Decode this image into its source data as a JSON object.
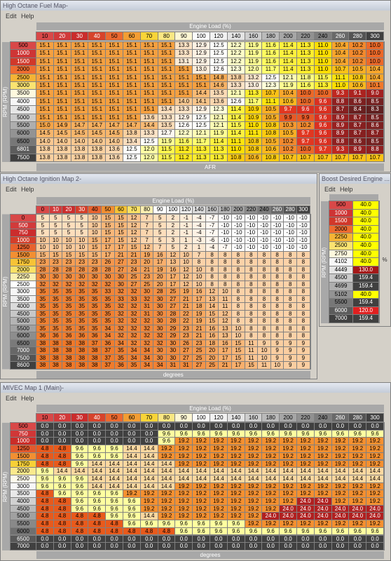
{
  "fuel_map": {
    "title": "High Octane Fuel Map-",
    "menu": [
      "Edit",
      "Help"
    ],
    "column_axis": "Engine Load (%)",
    "row_axis": "RPM (RPM)",
    "value_axis": "AFR",
    "columns": [
      10,
      20,
      30,
      40,
      50,
      60,
      70,
      80,
      90,
      100,
      120,
      140,
      160,
      180,
      200,
      220,
      240,
      260,
      280,
      300
    ],
    "rows": [
      500,
      1000,
      1500,
      2000,
      2500,
      3000,
      3500,
      4000,
      4500,
      5000,
      5500,
      6000,
      6500,
      6801,
      7500
    ],
    "cells": [
      [
        "15.1",
        "15.1",
        "15.1",
        "15.1",
        "15.1",
        "15.1",
        "15.1",
        "15.1",
        "13.3",
        "12.9",
        "12.5",
        "12.2",
        "11.9",
        "11.6",
        "11.4",
        "11.3",
        "11.0",
        "10.4",
        "10.2",
        "10.0"
      ],
      [
        "15.1",
        "15.1",
        "15.1",
        "15.1",
        "15.1",
        "15.1",
        "15.1",
        "15.1",
        "13.3",
        "12.9",
        "12.5",
        "12.2",
        "11.9",
        "11.6",
        "11.4",
        "11.3",
        "11.0",
        "10.4",
        "10.2",
        "10.0"
      ],
      [
        "15.1",
        "15.1",
        "15.1",
        "15.1",
        "15.1",
        "15.1",
        "15.1",
        "15.1",
        "13.1",
        "12.9",
        "12.5",
        "12.2",
        "11.9",
        "11.6",
        "11.4",
        "11.3",
        "11.0",
        "10.4",
        "10.2",
        "10.0"
      ],
      [
        "15.1",
        "15.1",
        "15.1",
        "15.1",
        "15.1",
        "15.1",
        "15.1",
        "15.1",
        "15.1",
        "13.0",
        "12.6",
        "12.3",
        "12.0",
        "11.7",
        "11.4",
        "11.3",
        "11.0",
        "10.7",
        "10.5",
        "10.4"
      ],
      [
        "15.1",
        "15.1",
        "15.1",
        "15.1",
        "15.1",
        "15.1",
        "15.1",
        "15.1",
        "15.1",
        "15.1",
        "14.8",
        "13.8",
        "13.2",
        "12.5",
        "12.1",
        "11.8",
        "11.5",
        "11.1",
        "10.8",
        "10.4"
      ],
      [
        "15.1",
        "15.1",
        "15.1",
        "15.1",
        "15.1",
        "15.1",
        "15.1",
        "15.1",
        "15.1",
        "15.1",
        "14.6",
        "13.3",
        "13.0",
        "12.3",
        "11.9",
        "11.6",
        "11.3",
        "11.0",
        "10.6",
        "10.1"
      ],
      [
        "15.1",
        "15.1",
        "15.1",
        "15.1",
        "15.1",
        "15.1",
        "15.1",
        "15.1",
        "15.1",
        "14.4",
        "13.5",
        "12.1",
        "11.3",
        "10.7",
        "10.4",
        "10.0",
        "10.0",
        "9.3",
        "9.1",
        "9.0"
      ],
      [
        "15.1",
        "15.1",
        "15.1",
        "15.1",
        "15.1",
        "15.1",
        "15.1",
        "15.1",
        "14.0",
        "14.1",
        "13.6",
        "12.6",
        "11.7",
        "11.1",
        "10.6",
        "10.0",
        "9.6",
        "8.8",
        "8.6",
        "8.5"
      ],
      [
        "15.1",
        "15.1",
        "15.1",
        "15.1",
        "15.1",
        "15.1",
        "15.1",
        "13.4",
        "13.3",
        "12.9",
        "12.3",
        "11.4",
        "10.9",
        "10.5",
        "9.7",
        "9.6",
        "9.6",
        "8.7",
        "8.4",
        "8.3"
      ],
      [
        "15.1",
        "15.1",
        "15.1",
        "15.1",
        "15.1",
        "15.1",
        "13.6",
        "13.3",
        "12.9",
        "12.5",
        "12.1",
        "11.4",
        "10.9",
        "10.5",
        "9.9",
        "9.9",
        "9.6",
        "8.9",
        "8.7",
        "8.5"
      ],
      [
        "15.0",
        "14.9",
        "14.7",
        "14.7",
        "14.7",
        "14.7",
        "14.4",
        "13.5",
        "12.6",
        "12.5",
        "12.1",
        "11.5",
        "11.0",
        "10.8",
        "10.3",
        "10.2",
        "9.6",
        "8.9",
        "8.7",
        "8.6"
      ],
      [
        "14.5",
        "14.5",
        "14.5",
        "14.5",
        "14.5",
        "13.8",
        "13.3",
        "12.7",
        "12.2",
        "12.1",
        "11.9",
        "11.4",
        "11.1",
        "10.8",
        "10.5",
        "9.7",
        "9.6",
        "8.9",
        "8.7",
        "8.7"
      ],
      [
        "14.0",
        "14.0",
        "14.0",
        "14.0",
        "14.0",
        "13.4",
        "12.5",
        "11.9",
        "11.6",
        "11.7",
        "11.4",
        "11.1",
        "10.8",
        "10.5",
        "10.2",
        "9.7",
        "9.6",
        "8.8",
        "8.6",
        "8.5"
      ],
      [
        "13.8",
        "13.8",
        "13.8",
        "13.8",
        "13.6",
        "12.5",
        "12.0",
        "11.5",
        "11.2",
        "11.3",
        "11.3",
        "11.0",
        "10.8",
        "10.6",
        "10.2",
        "10.0",
        "9.7",
        "9.3",
        "8.9",
        "8.8"
      ],
      [
        "13.8",
        "13.8",
        "13.8",
        "13.8",
        "13.6",
        "12.5",
        "12.0",
        "11.5",
        "11.2",
        "11.3",
        "11.3",
        "10.8",
        "10.6",
        "10.8",
        "10.7",
        "10.7",
        "10.7",
        "10.7",
        "10.7",
        "10.7"
      ]
    ]
  },
  "ignition_map": {
    "title": "High Octane Ignition Map 2-",
    "menu": [
      "Edit",
      "Help"
    ],
    "column_axis": "Engine Load (%)",
    "row_axis": "RPM (RPM)",
    "value_axis": "degrees",
    "columns": [
      0,
      10,
      20,
      30,
      40,
      50,
      60,
      70,
      80,
      90,
      100,
      120,
      140,
      160,
      180,
      200,
      220,
      240,
      260,
      280,
      300
    ],
    "rows": [
      0,
      500,
      750,
      1000,
      1250,
      1500,
      1750,
      2000,
      2250,
      2500,
      3000,
      3500,
      4000,
      4500,
      5000,
      5500,
      6000,
      6500,
      7000,
      7500,
      8600
    ],
    "cells": [
      [
        5,
        5,
        5,
        5,
        10,
        15,
        15,
        12,
        7,
        5,
        2,
        -1,
        -4,
        -7,
        -10,
        -10,
        -10,
        -10,
        -10,
        -10,
        -10
      ],
      [
        5,
        5,
        5,
        5,
        10,
        15,
        15,
        12,
        7,
        5,
        2,
        -1,
        -4,
        -7,
        -10,
        -10,
        -10,
        -10,
        -10,
        -10,
        -10
      ],
      [
        5,
        5,
        5,
        5,
        10,
        15,
        15,
        12,
        7,
        5,
        2,
        -1,
        -4,
        -7,
        -10,
        -10,
        -10,
        -10,
        -10,
        -10,
        -10
      ],
      [
        10,
        10,
        10,
        10,
        15,
        17,
        15,
        12,
        7,
        5,
        3,
        1,
        -3,
        -6,
        -10,
        -10,
        -10,
        -10,
        -10,
        -10,
        -10
      ],
      [
        10,
        10,
        10,
        10,
        15,
        17,
        17,
        15,
        12,
        7,
        5,
        2,
        1,
        -4,
        -7,
        -10,
        -10,
        -10,
        -10,
        -10,
        -10
      ],
      [
        15,
        15,
        15,
        15,
        15,
        17,
        21,
        21,
        19,
        16,
        12,
        10,
        7,
        8,
        8,
        8,
        8,
        8,
        8,
        8,
        8
      ],
      [
        23,
        23,
        23,
        23,
        23,
        26,
        27,
        23,
        20,
        17,
        13,
        10,
        8,
        8,
        8,
        8,
        8,
        8,
        8,
        8,
        8
      ],
      [
        28,
        28,
        28,
        28,
        28,
        28,
        27,
        24,
        21,
        19,
        16,
        12,
        10,
        8,
        8,
        8,
        8,
        8,
        8,
        8,
        8
      ],
      [
        30,
        30,
        30,
        30,
        30,
        30,
        30,
        25,
        23,
        20,
        17,
        12,
        10,
        8,
        8,
        8,
        8,
        8,
        8,
        8,
        8
      ],
      [
        32,
        32,
        32,
        32,
        32,
        32,
        30,
        27,
        25,
        20,
        17,
        12,
        10,
        8,
        8,
        8,
        8,
        8,
        8,
        8,
        8
      ],
      [
        35,
        35,
        35,
        35,
        35,
        33,
        32,
        32,
        30,
        28,
        25,
        19,
        16,
        12,
        10,
        8,
        8,
        8,
        8,
        8,
        8
      ],
      [
        35,
        35,
        35,
        35,
        35,
        35,
        33,
        33,
        32,
        30,
        27,
        21,
        17,
        13,
        11,
        8,
        8,
        8,
        8,
        8,
        8
      ],
      [
        35,
        35,
        35,
        35,
        35,
        35,
        32,
        32,
        31,
        30,
        27,
        21,
        18,
        14,
        11,
        8,
        8,
        8,
        8,
        8,
        8
      ],
      [
        35,
        35,
        35,
        35,
        35,
        35,
        32,
        32,
        31,
        30,
        28,
        22,
        19,
        15,
        12,
        8,
        8,
        8,
        8,
        8,
        8
      ],
      [
        35,
        35,
        35,
        35,
        35,
        35,
        32,
        32,
        32,
        30,
        28,
        22,
        19,
        15,
        12,
        8,
        8,
        8,
        8,
        8,
        8
      ],
      [
        35,
        35,
        35,
        35,
        35,
        34,
        32,
        32,
        32,
        30,
        29,
        23,
        21,
        16,
        13,
        10,
        8,
        8,
        8,
        8,
        8
      ],
      [
        36,
        36,
        36,
        36,
        36,
        34,
        32,
        32,
        32,
        32,
        29,
        23,
        21,
        16,
        13,
        10,
        8,
        8,
        8,
        8,
        8
      ],
      [
        38,
        38,
        38,
        38,
        37,
        36,
        34,
        32,
        32,
        32,
        30,
        26,
        23,
        18,
        16,
        15,
        11,
        9,
        9,
        9,
        9
      ],
      [
        38,
        38,
        38,
        38,
        38,
        37,
        35,
        34,
        34,
        30,
        30,
        27,
        25,
        20,
        17,
        15,
        11,
        10,
        9,
        9,
        9
      ],
      [
        38,
        38,
        38,
        38,
        38,
        37,
        35,
        34,
        34,
        30,
        30,
        27,
        25,
        20,
        17,
        15,
        11,
        10,
        9,
        9,
        9
      ],
      [
        38,
        38,
        38,
        38,
        38,
        37,
        36,
        35,
        34,
        34,
        31,
        31,
        27,
        25,
        21,
        17,
        15,
        11,
        10,
        9,
        9
      ]
    ]
  },
  "boost_map": {
    "title": "Boost Desired Engine ...",
    "menu": [
      "Edit",
      "Help"
    ],
    "row_axis": "RPM (RPM)",
    "value_axis": "%",
    "rows": [
      500,
      1000,
      1500,
      2000,
      2250,
      2500,
      2750,
      4102,
      4449,
      4500,
      4699,
      5102,
      5500,
      6000,
      7000
    ],
    "cells": [
      [
        "40.0"
      ],
      [
        "40.0"
      ],
      [
        "40.0"
      ],
      [
        "40.0"
      ],
      [
        "40.0"
      ],
      [
        "40.0"
      ],
      [
        "40.0"
      ],
      [
        "40.0"
      ],
      [
        "130.0"
      ],
      [
        "159.4"
      ],
      [
        "159.4"
      ],
      [
        "40.0"
      ],
      [
        "159.4"
      ],
      [
        "120.0"
      ],
      [
        "159.4"
      ]
    ]
  },
  "mivec_map": {
    "title": "MIVEC Map 1 (Main)-",
    "menu": [
      "Edit",
      "Help"
    ],
    "column_axis": "Engine Load (%)",
    "row_axis": "RPM (RPM)",
    "value_axis": "degrees",
    "columns": [
      10,
      20,
      30,
      40,
      50,
      60,
      70,
      80,
      90,
      100,
      120,
      140,
      160,
      180,
      200,
      220,
      240,
      260,
      280,
      300
    ],
    "rows": [
      500,
      750,
      1000,
      1250,
      1500,
      1750,
      2000,
      2500,
      3000,
      3500,
      4000,
      4500,
      5000,
      5500,
      6000,
      6500,
      7000
    ],
    "cells": [
      [
        "0.0",
        "0.0",
        "0.0",
        "0.0",
        "0.0",
        "0.0",
        "0.0",
        "0.0",
        "0.0",
        "0.0",
        "0.0",
        "0.0",
        "0.0",
        "0.0",
        "0.0",
        "0.0",
        "0.0",
        "0.0",
        "0.0",
        "0.0"
      ],
      [
        "0.0",
        "0.0",
        "0.0",
        "0.0",
        "0.0",
        "0.0",
        "0.0",
        "9.6",
        "9.6",
        "9.6",
        "9.6",
        "9.6",
        "9.6",
        "9.6",
        "9.6",
        "9.6",
        "9.6",
        "9.6",
        "9.6",
        "9.6"
      ],
      [
        "0.0",
        "0.0",
        "0.0",
        "0.0",
        "0.0",
        "0.0",
        "0.0",
        "9.6",
        "19.2",
        "19.2",
        "19.2",
        "19.2",
        "19.2",
        "19.2",
        "19.2",
        "19.2",
        "19.2",
        "19.2",
        "19.2",
        "19.2"
      ],
      [
        "4.8",
        "4.8",
        "9.6",
        "9.6",
        "9.6",
        "14.4",
        "14.4",
        "19.2",
        "19.2",
        "19.2",
        "19.2",
        "19.2",
        "19.2",
        "19.2",
        "19.2",
        "19.2",
        "19.2",
        "19.2",
        "19.2",
        "19.2"
      ],
      [
        "4.8",
        "4.8",
        "9.6",
        "9.6",
        "9.6",
        "14.4",
        "14.4",
        "19.2",
        "19.2",
        "19.2",
        "19.2",
        "19.2",
        "19.2",
        "19.2",
        "19.2",
        "19.2",
        "19.2",
        "19.2",
        "19.2",
        "19.2"
      ],
      [
        "4.8",
        "4.8",
        "9.6",
        "14.4",
        "14.4",
        "14.4",
        "14.4",
        "14.4",
        "19.2",
        "19.2",
        "19.2",
        "19.2",
        "19.2",
        "19.2",
        "19.2",
        "19.2",
        "19.2",
        "19.2",
        "19.2",
        "19.2"
      ],
      [
        "9.6",
        "14.4",
        "14.4",
        "14.4",
        "14.4",
        "14.4",
        "14.4",
        "14.4",
        "14.4",
        "14.4",
        "14.4",
        "14.4",
        "14.4",
        "14.4",
        "14.4",
        "14.4",
        "14.4",
        "14.4",
        "14.4",
        "14.4"
      ],
      [
        "9.6",
        "9.6",
        "9.6",
        "14.4",
        "14.4",
        "14.4",
        "14.4",
        "14.4",
        "14.4",
        "14.4",
        "14.4",
        "14.4",
        "14.4",
        "14.4",
        "14.4",
        "14.4",
        "14.4",
        "14.4",
        "14.4",
        "14.4"
      ],
      [
        "9.6",
        "9.6",
        "9.6",
        "14.4",
        "14.4",
        "14.4",
        "14.4",
        "14.4",
        "19.2",
        "19.2",
        "19.2",
        "19.2",
        "19.2",
        "19.2",
        "19.2",
        "19.2",
        "19.2",
        "19.2",
        "19.2",
        "19.2"
      ],
      [
        "4.8",
        "9.6",
        "9.6",
        "9.6",
        "9.6",
        "19.2",
        "19.2",
        "19.2",
        "19.2",
        "19.2",
        "19.2",
        "19.2",
        "19.2",
        "19.2",
        "19.2",
        "19.2",
        "19.2",
        "19.2",
        "19.2",
        "19.2"
      ],
      [
        "4.8",
        "4.8",
        "9.6",
        "9.6",
        "9.6",
        "9.6",
        "19.2",
        "19.2",
        "19.2",
        "19.2",
        "19.2",
        "19.2",
        "19.2",
        "19.2",
        "19.2",
        "24.0",
        "24.0",
        "19.2",
        "19.2",
        "19.2"
      ],
      [
        "4.8",
        "4.8",
        "9.6",
        "9.6",
        "9.6",
        "9.6",
        "19.2",
        "19.2",
        "19.2",
        "19.2",
        "19.2",
        "19.2",
        "19.2",
        "19.2",
        "24.0",
        "24.0",
        "24.0",
        "24.0",
        "24.0",
        "24.0"
      ],
      [
        "4.8",
        "4.8",
        "4.8",
        "4.8",
        "9.6",
        "9.6",
        "14.4",
        "19.2",
        "19.2",
        "19.2",
        "19.2",
        "19.2",
        "19.2",
        "24.0",
        "24.0",
        "24.0",
        "24.0",
        "24.0",
        "24.0",
        "24.0"
      ],
      [
        "4.8",
        "4.8",
        "4.8",
        "4.8",
        "4.8",
        "9.6",
        "9.6",
        "9.6",
        "9.6",
        "9.6",
        "9.6",
        "9.6",
        "19.2",
        "19.2",
        "19.2",
        "19.2",
        "19.2",
        "19.2",
        "19.2",
        "19.2"
      ],
      [
        "4.8",
        "4.8",
        "4.8",
        "4.8",
        "4.8",
        "4.8",
        "4.8",
        "4.8",
        "9.6",
        "9.6",
        "9.6",
        "9.6",
        "9.6",
        "9.6",
        "9.6",
        "9.6",
        "9.6",
        "9.6",
        "9.6",
        "9.6"
      ],
      [
        "0.0",
        "0.0",
        "0.0",
        "0.0",
        "0.0",
        "0.0",
        "0.0",
        "0.0",
        "0.0",
        "0.0",
        "0.0",
        "0.0",
        "0.0",
        "0.0",
        "0.0",
        "0.0",
        "0.0",
        "0.0",
        "0.0",
        "0.0"
      ],
      [
        "0.0",
        "0.0",
        "0.0",
        "0.0",
        "0.0",
        "0.0",
        "0.0",
        "0.0",
        "0.0",
        "0.0",
        "0.0",
        "0.0",
        "0.0",
        "0.0",
        "0.0",
        "0.0",
        "0.0",
        "0.0",
        "0.0",
        "0.0"
      ]
    ]
  }
}
